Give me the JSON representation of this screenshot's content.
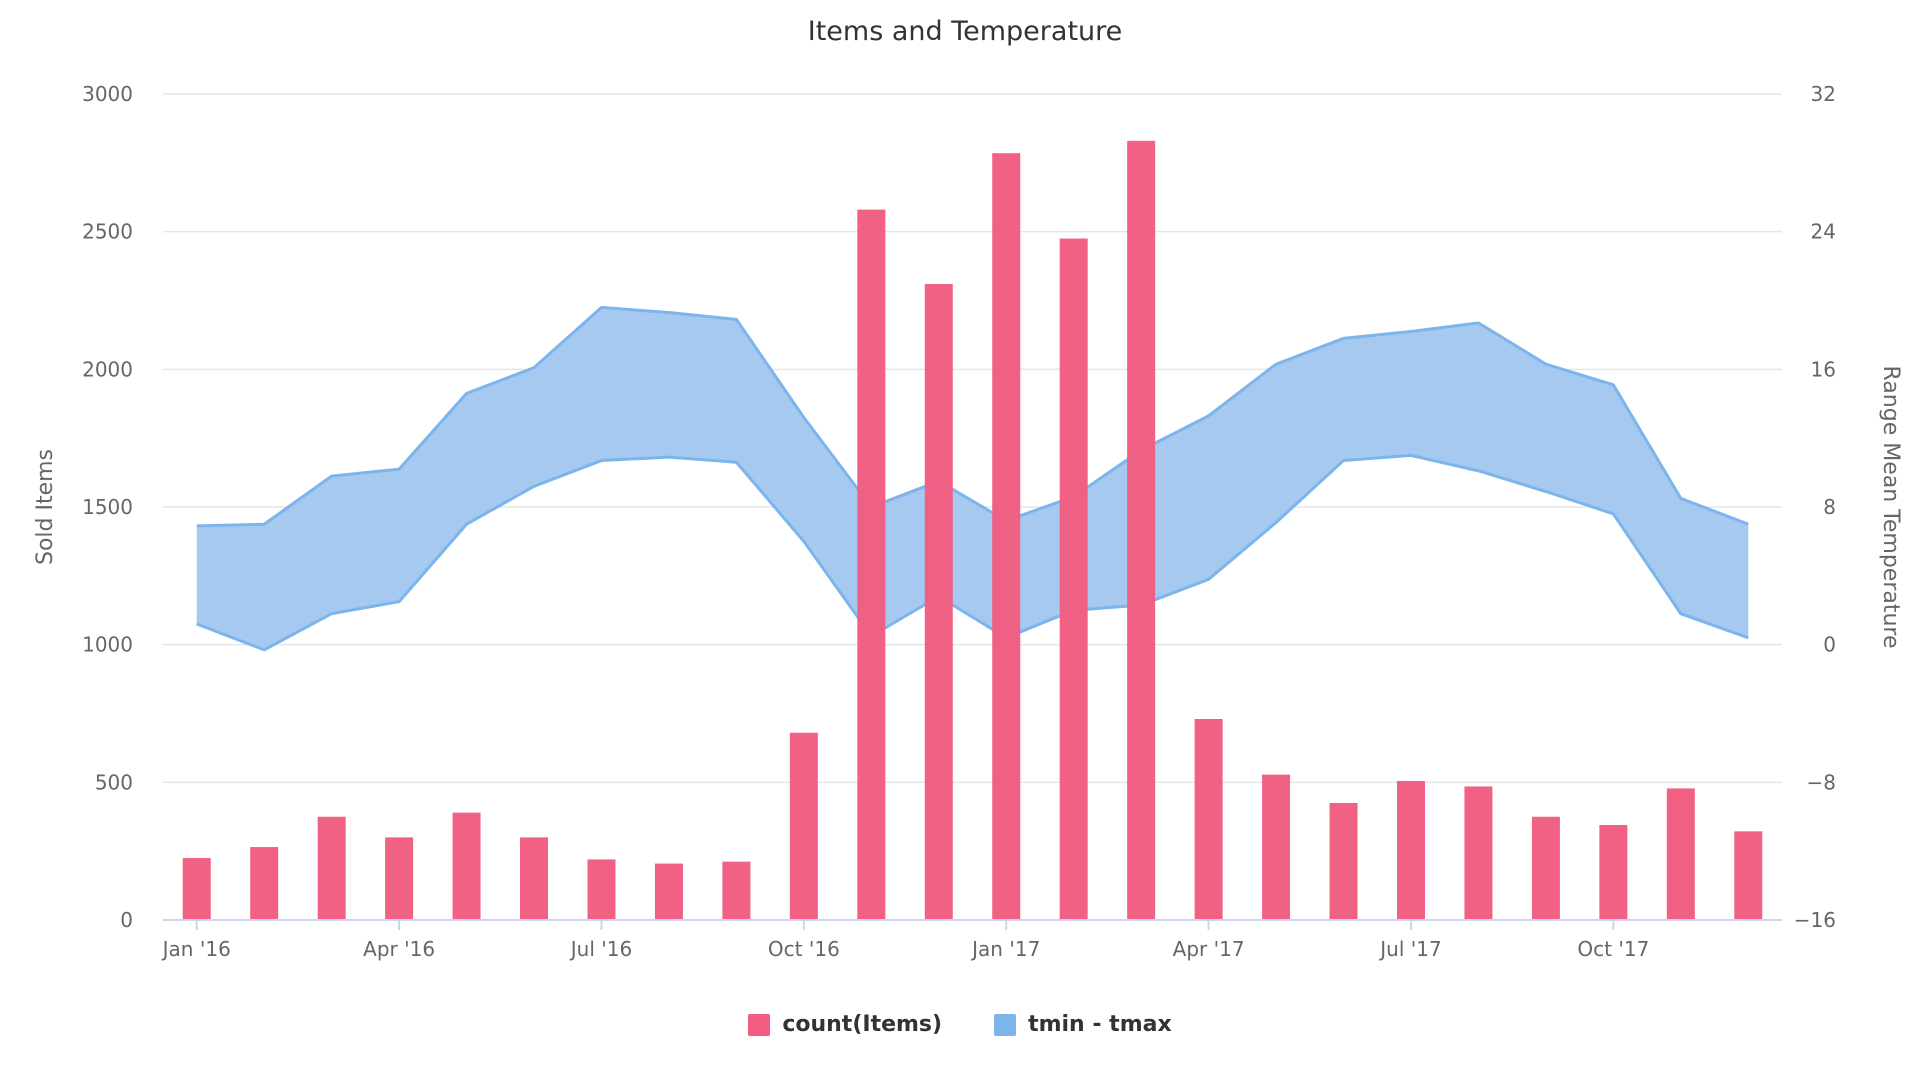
{
  "colors": {
    "bar": "#f15c80",
    "band_fill": "#a5c9ef",
    "band_line": "#7cb5ec",
    "grid": "#e6e6e6",
    "axis_text": "#666666",
    "title_text": "#333333"
  },
  "chart_data": {
    "type": "bar",
    "title": "Items and Temperature",
    "x_ticks": [
      "Jan '16",
      "Apr '16",
      "Jul '16",
      "Oct '16",
      "Jan '17",
      "Apr '17",
      "Jul '17",
      "Oct '17"
    ],
    "months": [
      "2016-01",
      "2016-02",
      "2016-03",
      "2016-04",
      "2016-05",
      "2016-06",
      "2016-07",
      "2016-08",
      "2016-09",
      "2016-10",
      "2016-11",
      "2016-12",
      "2017-01",
      "2017-02",
      "2017-03",
      "2017-04",
      "2017-05",
      "2017-06",
      "2017-07",
      "2017-08",
      "2017-09",
      "2017-10",
      "2017-11",
      "2017-12"
    ],
    "y_left": {
      "label": "Sold Items",
      "ticks": [
        "0",
        "500",
        "1000",
        "1500",
        "2000",
        "2500",
        "3000"
      ],
      "range": [
        0,
        3000
      ]
    },
    "y_right": {
      "label": "Range Mean Temperature",
      "ticks": [
        "−16",
        "−8",
        "0",
        "8",
        "16",
        "24",
        "32"
      ],
      "range": [
        -16,
        32
      ]
    },
    "series": [
      {
        "name": "count(Items)",
        "type": "bar",
        "values": [
          225,
          265,
          375,
          300,
          390,
          300,
          220,
          205,
          212,
          680,
          2580,
          2310,
          2785,
          2475,
          2830,
          730,
          528,
          425,
          505,
          485,
          375,
          345,
          478,
          322
        ]
      },
      {
        "name": "tmin - tmax",
        "type": "arearange",
        "low": [
          1.2,
          -0.3,
          1.8,
          2.5,
          7.0,
          9.2,
          10.7,
          10.9,
          10.6,
          6.0,
          0.5,
          2.8,
          0.4,
          2.0,
          2.3,
          3.8,
          7.1,
          10.7,
          11.0,
          10.1,
          8.9,
          7.6,
          1.8,
          0.4
        ],
        "high": [
          6.9,
          7.0,
          9.8,
          10.2,
          14.6,
          16.1,
          19.6,
          19.3,
          18.9,
          13.2,
          8.0,
          9.5,
          7.2,
          8.6,
          11.3,
          13.3,
          16.3,
          17.8,
          18.2,
          18.7,
          16.3,
          15.1,
          8.5,
          7.0
        ]
      }
    ]
  }
}
